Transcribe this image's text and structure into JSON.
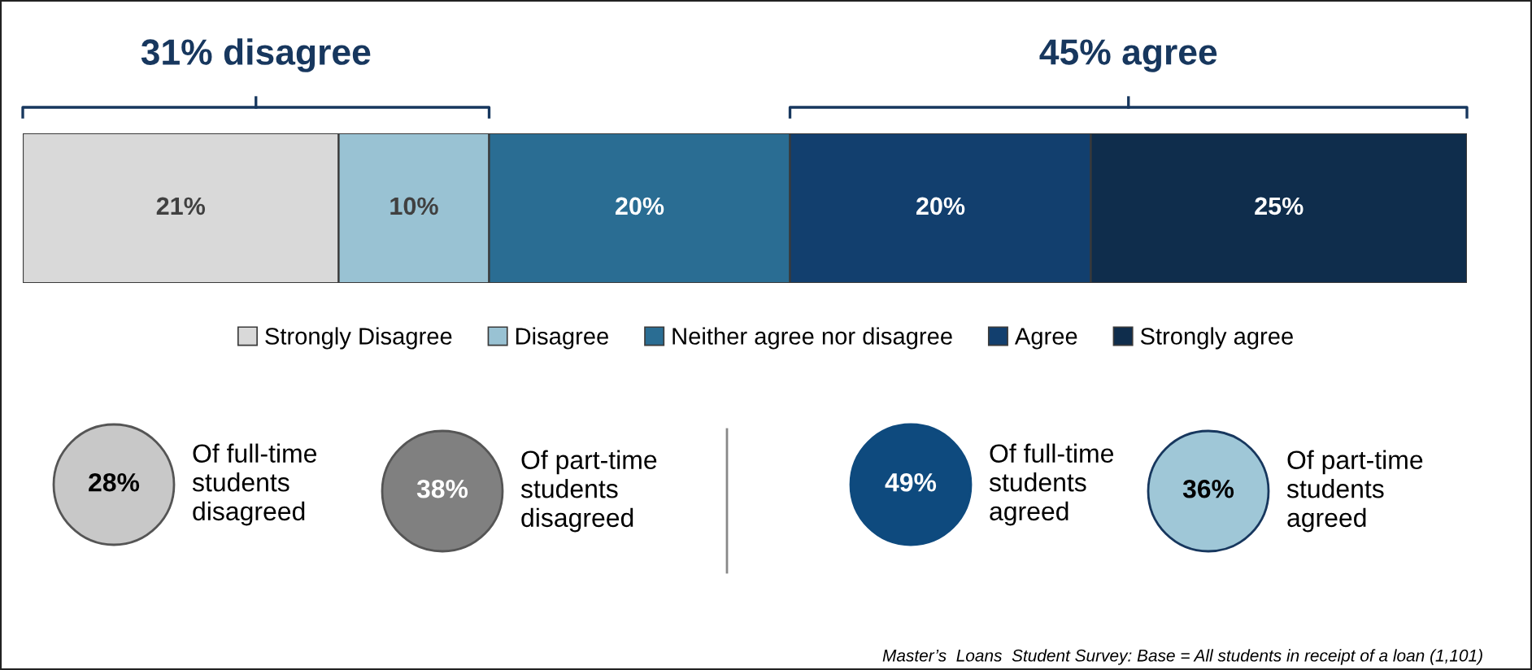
{
  "chart_data": {
    "type": "bar",
    "orientation": "horizontal",
    "stacked": true,
    "categories": [
      null
    ],
    "legend": "bottom",
    "grid": false,
    "tick_labels": false,
    "series": [
      {
        "name": "Strongly Disagree",
        "color": "#d9d9d9",
        "values": [
          21
        ],
        "value_labels": [
          "21%"
        ]
      },
      {
        "name": "Disagree",
        "color": "#99c2d3",
        "values": [
          10
        ],
        "value_labels": [
          "10%"
        ]
      },
      {
        "name": "Neither agree nor disagree",
        "color": "#2a6d93",
        "values": [
          20
        ],
        "value_labels": [
          "20%"
        ]
      },
      {
        "name": "Agree",
        "color": "#123f6e",
        "values": [
          20
        ],
        "value_labels": [
          "20%"
        ]
      },
      {
        "name": "Strongly agree",
        "color": "#0f2d4c",
        "values": [
          25
        ],
        "value_labels": [
          "25%"
        ]
      }
    ],
    "annotations": [
      "31% disagree",
      "45% agree",
      "28%",
      "Of full-time\nstudents\ndisagreed",
      "38%",
      "Of part-time\nstudents\ndisagreed",
      "49%",
      "Of full-time\nstudents\nagreed",
      "36%",
      "Of part-time\nstudents\nagreed",
      "Master’s  Loans  Student Survey: Base = All students in receipt of a loan (1,101)"
    ]
  }
}
